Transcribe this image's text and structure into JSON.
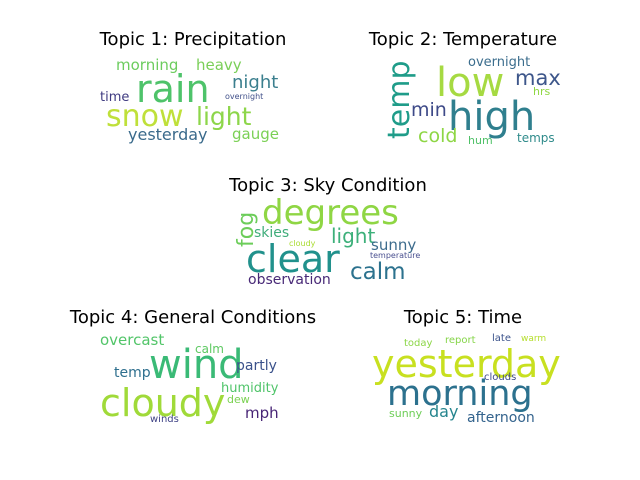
{
  "topics": [
    {
      "title": "Topic 1: Precipitation",
      "words": [
        {
          "text": "rain",
          "color": "#4ec36a"
        },
        {
          "text": "snow",
          "color": "#bfe03a"
        },
        {
          "text": "light",
          "color": "#8dd64a"
        },
        {
          "text": "morning",
          "color": "#6ccc5e"
        },
        {
          "text": "heavy",
          "color": "#7acf58"
        },
        {
          "text": "night",
          "color": "#3b7f8e"
        },
        {
          "text": "time",
          "color": "#3f3b81"
        },
        {
          "text": "overnight",
          "color": "#42518a"
        },
        {
          "text": "yesterday",
          "color": "#3a6a8b"
        },
        {
          "text": "gauge",
          "color": "#7bd055"
        }
      ]
    },
    {
      "title": "Topic 2: Temperature",
      "words": [
        {
          "text": "low",
          "color": "#a6da42"
        },
        {
          "text": "high",
          "color": "#2f7f8e"
        },
        {
          "text": "temp",
          "color": "#1f9c89"
        },
        {
          "text": "max",
          "color": "#3d568a"
        },
        {
          "text": "overnight",
          "color": "#3b6d8d"
        },
        {
          "text": "min",
          "color": "#3e4a88"
        },
        {
          "text": "cold",
          "color": "#8ed645"
        },
        {
          "text": "hrs",
          "color": "#90d743"
        },
        {
          "text": "hum",
          "color": "#4fc168"
        },
        {
          "text": "temps",
          "color": "#2f8b8b"
        }
      ]
    },
    {
      "title": "Topic 3: Sky Condition",
      "words": [
        {
          "text": "degrees",
          "color": "#8fd644"
        },
        {
          "text": "clear",
          "color": "#21918c"
        },
        {
          "text": "fog",
          "color": "#6ccd5a"
        },
        {
          "text": "light",
          "color": "#3db07a"
        },
        {
          "text": "skies",
          "color": "#40ad7b"
        },
        {
          "text": "sunny",
          "color": "#3d6c8d"
        },
        {
          "text": "cloudy",
          "color": "#aadc32"
        },
        {
          "text": "temperature",
          "color": "#4a5090"
        },
        {
          "text": "calm",
          "color": "#2c728e"
        },
        {
          "text": "observation",
          "color": "#482977"
        }
      ]
    },
    {
      "title": "Topic 4: General Conditions",
      "words": [
        {
          "text": "wind",
          "color": "#3aba76"
        },
        {
          "text": "cloudy",
          "color": "#a0da39"
        },
        {
          "text": "overcast",
          "color": "#52c569"
        },
        {
          "text": "calm",
          "color": "#5ec962"
        },
        {
          "text": "partly",
          "color": "#3b528b"
        },
        {
          "text": "temp",
          "color": "#2e6f8e"
        },
        {
          "text": "humidity",
          "color": "#50c46a"
        },
        {
          "text": "dew",
          "color": "#7ad151"
        },
        {
          "text": "mph",
          "color": "#482576"
        },
        {
          "text": "winds",
          "color": "#414487"
        }
      ]
    },
    {
      "title": "Topic 5: Time",
      "words": [
        {
          "text": "yesterday",
          "color": "#c8e020"
        },
        {
          "text": "morning",
          "color": "#2c718e"
        },
        {
          "text": "today",
          "color": "#8bd646"
        },
        {
          "text": "report",
          "color": "#86d549"
        },
        {
          "text": "late",
          "color": "#3b528b"
        },
        {
          "text": "warm",
          "color": "#b5de2b"
        },
        {
          "text": "clouds",
          "color": "#3e4a89"
        },
        {
          "text": "day",
          "color": "#25858e"
        },
        {
          "text": "sunny",
          "color": "#6ece58"
        },
        {
          "text": "afternoon",
          "color": "#33638d"
        }
      ]
    }
  ]
}
